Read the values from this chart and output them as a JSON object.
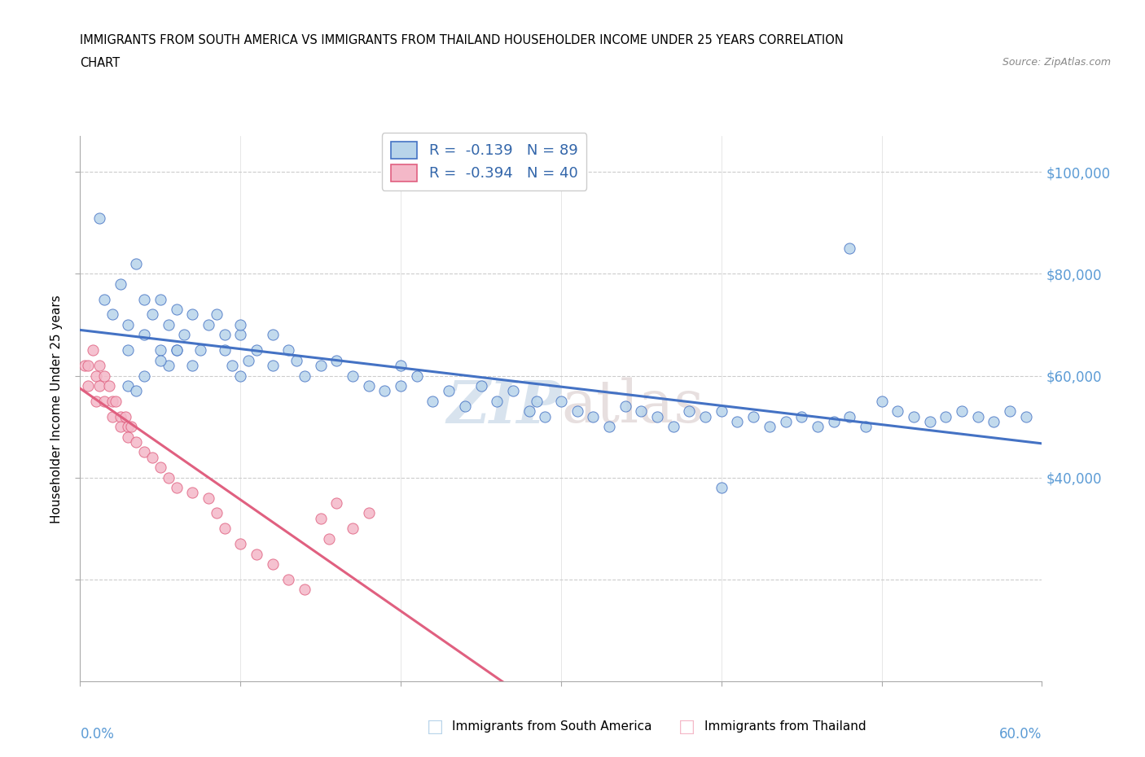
{
  "title_line1": "IMMIGRANTS FROM SOUTH AMERICA VS IMMIGRANTS FROM THAILAND HOUSEHOLDER INCOME UNDER 25 YEARS CORRELATION",
  "title_line2": "CHART",
  "source_text": "Source: ZipAtlas.com",
  "ylabel": "Householder Income Under 25 years",
  "legend_label_1": "Immigrants from South America",
  "legend_label_2": "Immigrants from Thailand",
  "R1": -0.139,
  "N1": 89,
  "R2": -0.394,
  "N2": 40,
  "color_sa": "#b8d4ea",
  "color_th": "#f4b8c8",
  "line_color_sa": "#4472c4",
  "line_color_th": "#e06080",
  "sa_x": [
    1.2,
    1.5,
    2.0,
    2.5,
    3.0,
    3.0,
    3.5,
    4.0,
    4.0,
    4.5,
    5.0,
    5.0,
    5.5,
    5.5,
    6.0,
    6.0,
    6.5,
    7.0,
    7.0,
    7.5,
    8.0,
    8.5,
    9.0,
    9.0,
    9.5,
    10.0,
    10.0,
    10.5,
    11.0,
    12.0,
    12.0,
    13.0,
    13.5,
    14.0,
    15.0,
    16.0,
    17.0,
    18.0,
    19.0,
    20.0,
    20.0,
    21.0,
    22.0,
    23.0,
    24.0,
    25.0,
    26.0,
    27.0,
    28.0,
    28.5,
    29.0,
    30.0,
    31.0,
    32.0,
    33.0,
    34.0,
    35.0,
    36.0,
    37.0,
    38.0,
    39.0,
    40.0,
    41.0,
    42.0,
    43.0,
    44.0,
    45.0,
    46.0,
    47.0,
    48.0,
    49.0,
    50.0,
    51.0,
    52.0,
    53.0,
    54.0,
    55.0,
    56.0,
    57.0,
    58.0,
    59.0,
    3.0,
    3.5,
    4.0,
    5.0,
    6.0,
    48.0,
    10.0,
    40.0
  ],
  "sa_y": [
    91000,
    75000,
    72000,
    78000,
    65000,
    70000,
    82000,
    75000,
    68000,
    72000,
    75000,
    65000,
    70000,
    62000,
    73000,
    65000,
    68000,
    72000,
    62000,
    65000,
    70000,
    72000,
    65000,
    68000,
    62000,
    68000,
    60000,
    63000,
    65000,
    68000,
    62000,
    65000,
    63000,
    60000,
    62000,
    63000,
    60000,
    58000,
    57000,
    62000,
    58000,
    60000,
    55000,
    57000,
    54000,
    58000,
    55000,
    57000,
    53000,
    55000,
    52000,
    55000,
    53000,
    52000,
    50000,
    54000,
    53000,
    52000,
    50000,
    53000,
    52000,
    53000,
    51000,
    52000,
    50000,
    51000,
    52000,
    50000,
    51000,
    52000,
    50000,
    55000,
    53000,
    52000,
    51000,
    52000,
    53000,
    52000,
    51000,
    53000,
    52000,
    58000,
    57000,
    60000,
    63000,
    65000,
    85000,
    70000,
    38000
  ],
  "th_x": [
    0.3,
    0.5,
    0.5,
    0.8,
    1.0,
    1.0,
    1.2,
    1.2,
    1.5,
    1.5,
    1.8,
    2.0,
    2.0,
    2.2,
    2.5,
    2.5,
    2.8,
    3.0,
    3.0,
    3.2,
    3.5,
    4.0,
    4.5,
    5.0,
    5.5,
    6.0,
    7.0,
    8.0,
    8.5,
    9.0,
    10.0,
    11.0,
    12.0,
    13.0,
    14.0,
    15.0,
    15.5,
    16.0,
    17.0,
    18.0
  ],
  "th_y": [
    62000,
    58000,
    62000,
    65000,
    60000,
    55000,
    62000,
    58000,
    60000,
    55000,
    58000,
    55000,
    52000,
    55000,
    52000,
    50000,
    52000,
    50000,
    48000,
    50000,
    47000,
    45000,
    44000,
    42000,
    40000,
    38000,
    37000,
    36000,
    33000,
    30000,
    27000,
    25000,
    23000,
    20000,
    18000,
    32000,
    28000,
    35000,
    30000,
    33000
  ]
}
